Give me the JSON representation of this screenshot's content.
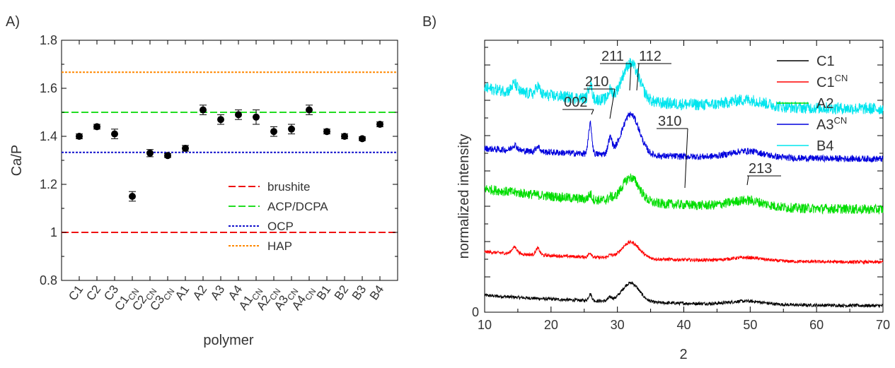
{
  "chart_data": [
    {
      "type": "scatter",
      "panel_label": "A)",
      "xlabel": "polymer",
      "ylabel": "Ca/P",
      "ylim": [
        0.8,
        1.8
      ],
      "yticks": [
        "0.8",
        "1",
        "1.2",
        "1.4",
        "1.6",
        "1.8"
      ],
      "categories": [
        {
          "base": "C1",
          "sub": ""
        },
        {
          "base": "C2",
          "sub": ""
        },
        {
          "base": "C3",
          "sub": ""
        },
        {
          "base": "C1",
          "sub": "CN"
        },
        {
          "base": "C2",
          "sub": "CN"
        },
        {
          "base": "C3",
          "sub": "CN"
        },
        {
          "base": "A1",
          "sub": ""
        },
        {
          "base": "A2",
          "sub": ""
        },
        {
          "base": "A3",
          "sub": ""
        },
        {
          "base": "A4",
          "sub": ""
        },
        {
          "base": "A1",
          "sub": "CN"
        },
        {
          "base": "A2",
          "sub": "CN"
        },
        {
          "base": "A3",
          "sub": "CN"
        },
        {
          "base": "A4",
          "sub": "CN"
        },
        {
          "base": "B1",
          "sub": ""
        },
        {
          "base": "B2",
          "sub": ""
        },
        {
          "base": "B3",
          "sub": ""
        },
        {
          "base": "B4",
          "sub": ""
        }
      ],
      "values": [
        1.4,
        1.44,
        1.41,
        1.15,
        1.33,
        1.32,
        1.35,
        1.51,
        1.47,
        1.49,
        1.48,
        1.42,
        1.43,
        1.51,
        1.42,
        1.4,
        1.39,
        1.45
      ],
      "errors": [
        0.01,
        0.01,
        0.02,
        0.02,
        0.015,
        0.008,
        0.012,
        0.02,
        0.02,
        0.02,
        0.03,
        0.02,
        0.02,
        0.02,
        0.01,
        0.01,
        0.008,
        0.01
      ],
      "reference_lines": [
        {
          "name": "brushite",
          "value": 1.0,
          "color": "#ee1111"
        },
        {
          "name": "ACP/DCPA",
          "value": 1.5,
          "color": "#22dd22"
        },
        {
          "name": "OCP",
          "value": 1.333,
          "color": "#1111cc"
        },
        {
          "name": "HAP",
          "value": 1.667,
          "color": "#ff8800"
        }
      ],
      "legend_position": "bottom-right"
    },
    {
      "type": "line",
      "panel_label": "B)",
      "xlabel": "2",
      "ylabel": "normalized intensity",
      "xlim": [
        10,
        70
      ],
      "xticks": [
        10,
        20,
        30,
        40,
        50,
        60,
        70
      ],
      "ytick_labels": [
        "0"
      ],
      "series": [
        {
          "name": "C1",
          "sup": "",
          "color": "#000000",
          "offset": 0.1,
          "peak": 0.35,
          "noise": 0.06,
          "peaks002": 0.12,
          "bump18": 0.0
        },
        {
          "name": "C1",
          "sup": "CN",
          "color": "#ff0000",
          "offset": 0.9,
          "peak": 0.3,
          "noise": 0.06,
          "peaks002": 0.08,
          "bump18": 0.12
        },
        {
          "name": "A2",
          "sup": "",
          "color": "#00dd00",
          "offset": 1.85,
          "peak": 0.45,
          "noise": 0.18,
          "peaks002": 0.1,
          "bump18": 0.0
        },
        {
          "name": "A3",
          "sup": "CN",
          "color": "#0000dd",
          "offset": 2.8,
          "peak": 0.75,
          "noise": 0.12,
          "peaks002": 0.55,
          "bump18": 0.1
        },
        {
          "name": "B4",
          "sup": "",
          "color": "#00e5ee",
          "offset": 3.7,
          "peak": 0.7,
          "noise": 0.22,
          "peaks002": 0.3,
          "bump18": 0.15
        }
      ],
      "peak_annotations": [
        "002",
        "210",
        "211",
        "112",
        "310",
        "213"
      ],
      "legend_position": "top-right"
    }
  ]
}
